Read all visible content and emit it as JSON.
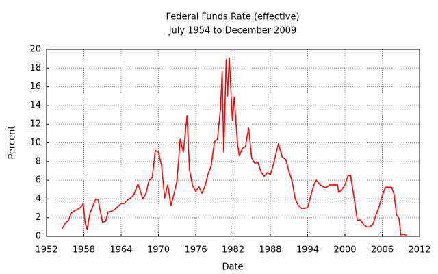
{
  "chart_data": {
    "type": "line",
    "title": "Federal Funds Rate (effective)",
    "subtitle": "July 1954 to December 2009",
    "x_label": "Date",
    "y_label": "Percent",
    "xlim": [
      1952,
      2012
    ],
    "xticks": [
      1952,
      1958,
      1964,
      1970,
      1976,
      1982,
      1988,
      1994,
      2000,
      2006,
      2012
    ],
    "ylim": [
      0,
      20
    ],
    "yticks": [
      0,
      2,
      4,
      6,
      8,
      10,
      12,
      14,
      16,
      18,
      20
    ],
    "grid": true,
    "series": [
      {
        "color": "#ff0000",
        "x": [
          1954.5,
          1955,
          1955.5,
          1956,
          1956.5,
          1957,
          1957.5,
          1957.9,
          1958.2,
          1958.5,
          1958.8,
          1959,
          1959.5,
          1959.9,
          1960.3,
          1960.7,
          1961,
          1961.5,
          1961.9,
          1962.5,
          1963,
          1963.5,
          1964,
          1964.5,
          1965,
          1965.5,
          1966,
          1966.7,
          1967,
          1967.5,
          1968,
          1968.5,
          1969,
          1969.5,
          1970,
          1970.5,
          1971,
          1971.5,
          1972,
          1972.5,
          1973,
          1973.5,
          1974,
          1974.6,
          1975,
          1975.5,
          1976,
          1976.5,
          1977,
          1977.5,
          1978,
          1978.5,
          1979,
          1979.5,
          1980,
          1980.25,
          1980.5,
          1980.9,
          1981.1,
          1981.4,
          1981.9,
          1982.2,
          1982.7,
          1983,
          1983.5,
          1984,
          1984.5,
          1985,
          1985.5,
          1986,
          1986.5,
          1987,
          1987.5,
          1988,
          1988.5,
          1989,
          1989.3,
          1989.9,
          1990.5,
          1991,
          1991.5,
          1992,
          1992.5,
          1993,
          1993.5,
          1994,
          1994.5,
          1995,
          1995.4,
          1996,
          1996.5,
          1997,
          1997.5,
          1998,
          1998.8,
          1999,
          1999.5,
          2000,
          2000.5,
          2000.9,
          2001.5,
          2002,
          2002.5,
          2003,
          2003.5,
          2004,
          2004.5,
          2005,
          2005.5,
          2006,
          2006.5,
          2007,
          2007.5,
          2007.9,
          2008.3,
          2008.7,
          2009,
          2009.5,
          2009.95
        ],
        "values": [
          0.8,
          1.4,
          1.7,
          2.5,
          2.75,
          2.9,
          3.1,
          3.5,
          1.5,
          0.7,
          1.8,
          2.5,
          3.3,
          4.0,
          3.9,
          2.5,
          1.5,
          1.6,
          2.6,
          2.7,
          2.9,
          3.2,
          3.5,
          3.5,
          3.9,
          4.1,
          4.4,
          5.6,
          5.0,
          4.0,
          4.6,
          6.0,
          6.3,
          9.2,
          9.0,
          7.6,
          4.1,
          5.5,
          3.3,
          4.5,
          6.0,
          10.4,
          9.0,
          12.9,
          7.1,
          5.4,
          4.8,
          5.3,
          4.6,
          5.4,
          6.7,
          7.6,
          10.1,
          10.4,
          13.8,
          17.6,
          9.0,
          18.9,
          15.0,
          19.1,
          12.4,
          14.9,
          10.0,
          8.6,
          9.4,
          9.6,
          11.6,
          8.4,
          7.8,
          7.9,
          6.9,
          6.4,
          6.8,
          6.6,
          7.7,
          9.1,
          9.9,
          8.5,
          8.2,
          6.9,
          5.9,
          4.0,
          3.3,
          3.0,
          3.0,
          3.1,
          4.3,
          5.5,
          6.0,
          5.5,
          5.3,
          5.2,
          5.5,
          5.5,
          5.5,
          4.7,
          5.0,
          5.5,
          6.5,
          6.5,
          4.0,
          1.7,
          1.75,
          1.25,
          1.0,
          1.0,
          1.3,
          2.3,
          3.2,
          4.3,
          5.25,
          5.25,
          5.25,
          4.5,
          2.3,
          1.9,
          0.15,
          0.2,
          0.12
        ]
      }
    ]
  }
}
